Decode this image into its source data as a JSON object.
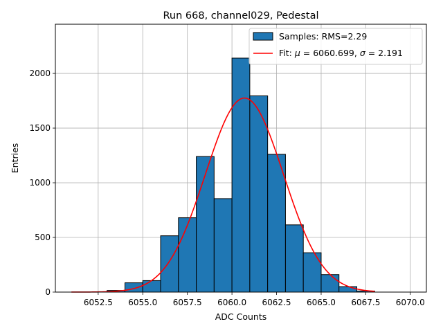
{
  "chart_data": {
    "type": "bar",
    "title": "Run 668, channel029, Pedestal",
    "xlabel": "ADC Counts",
    "ylabel": "Entries",
    "xlim": [
      6050.1,
      6070.9
    ],
    "ylim": [
      0,
      2450
    ],
    "grid": true,
    "legend_position": "top-right",
    "x_ticks": [
      {
        "value": 6052.5,
        "label": "6052.5"
      },
      {
        "value": 6055.0,
        "label": "6055.0"
      },
      {
        "value": 6057.5,
        "label": "6057.5"
      },
      {
        "value": 6060.0,
        "label": "6060.0"
      },
      {
        "value": 6062.5,
        "label": "6062.5"
      },
      {
        "value": 6065.0,
        "label": "6065.0"
      },
      {
        "value": 6067.5,
        "label": "6067.5"
      },
      {
        "value": 6070.0,
        "label": "6070.0"
      }
    ],
    "y_ticks": [
      {
        "value": 0,
        "label": "0"
      },
      {
        "value": 500,
        "label": "500"
      },
      {
        "value": 1000,
        "label": "1000"
      },
      {
        "value": 1500,
        "label": "1500"
      },
      {
        "value": 2000,
        "label": "2000"
      }
    ],
    "histogram": {
      "name": "Samples: RMS=2.29",
      "color": "#1f77b4",
      "edge_color": "#000000",
      "bins": [
        {
          "x0": 6053,
          "x1": 6054,
          "count": 15
        },
        {
          "x0": 6054,
          "x1": 6055,
          "count": 85
        },
        {
          "x0": 6055,
          "x1": 6056,
          "count": 105
        },
        {
          "x0": 6056,
          "x1": 6057,
          "count": 515
        },
        {
          "x0": 6057,
          "x1": 6058,
          "count": 680
        },
        {
          "x0": 6058,
          "x1": 6059,
          "count": 1240
        },
        {
          "x0": 6059,
          "x1": 6060,
          "count": 855
        },
        {
          "x0": 6060,
          "x1": 6061,
          "count": 2140
        },
        {
          "x0": 6061,
          "x1": 6062,
          "count": 1795
        },
        {
          "x0": 6062,
          "x1": 6063,
          "count": 1260
        },
        {
          "x0": 6063,
          "x1": 6064,
          "count": 615
        },
        {
          "x0": 6064,
          "x1": 6065,
          "count": 360
        },
        {
          "x0": 6065,
          "x1": 6066,
          "count": 160
        },
        {
          "x0": 6066,
          "x1": 6067,
          "count": 50
        },
        {
          "x0": 6067,
          "x1": 6068,
          "count": 10
        }
      ]
    },
    "fit": {
      "name_prefix": "Fit: ",
      "mu_symbol": "μ",
      "sigma_symbol": "σ",
      "mu_text": " = 6060.699, ",
      "sigma_text": " = 2.191",
      "color": "#ff0000",
      "mu": 6060.699,
      "sigma": 2.191,
      "amplitude": 1775,
      "x_range": [
        6051,
        6068
      ]
    }
  }
}
